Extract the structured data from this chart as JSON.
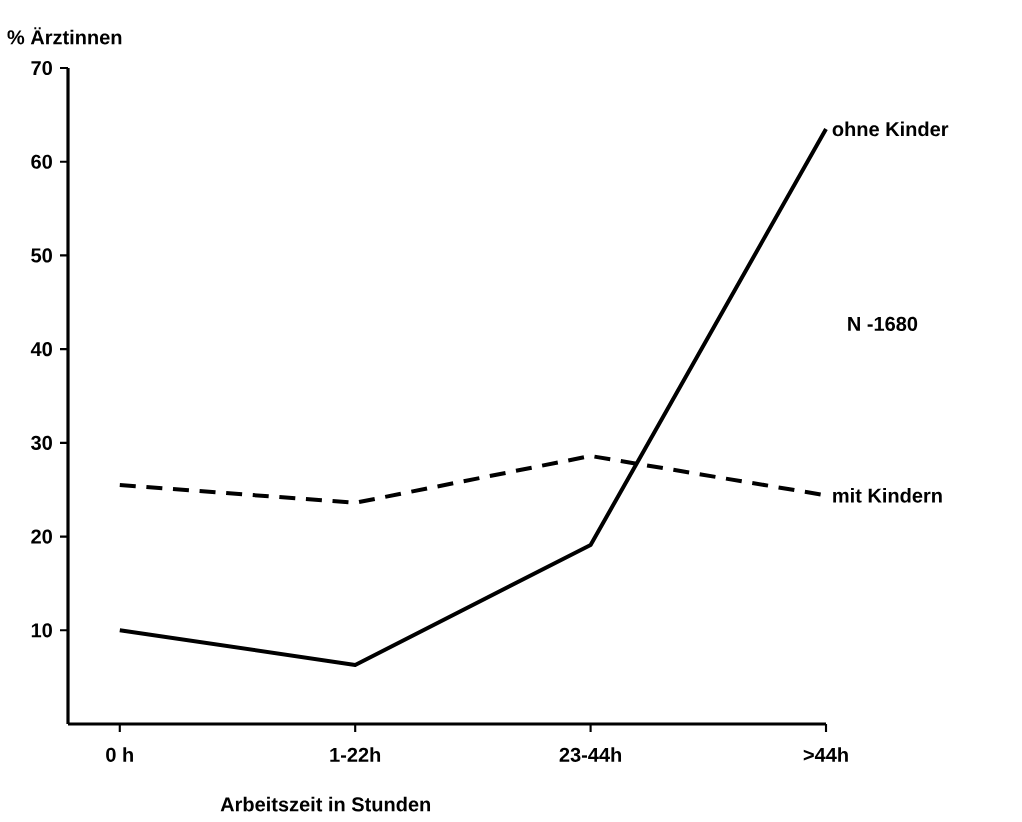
{
  "chart_data": {
    "type": "line",
    "xlabel": "Arbeitszeit  in Stunden",
    "ylabel": "% Ärztinnen",
    "categories": [
      "0 h",
      "1-22h",
      "23-44h",
      ">44h"
    ],
    "series": [
      {
        "name": "ohne Kinder",
        "color": "#000000",
        "line_style": "solid",
        "values": [
          10,
          6.3,
          19.1,
          63.5
        ]
      },
      {
        "name": "mit Kindern",
        "color": "#000000",
        "line_style": "dashed",
        "values": [
          25.5,
          23.6,
          28.6,
          24.4
        ]
      }
    ],
    "ylim": [
      0,
      70
    ],
    "yticks": [
      10,
      20,
      30,
      40,
      50,
      60,
      70
    ],
    "grid": false,
    "marker": "none",
    "annotations": [
      "N -1680"
    ]
  }
}
